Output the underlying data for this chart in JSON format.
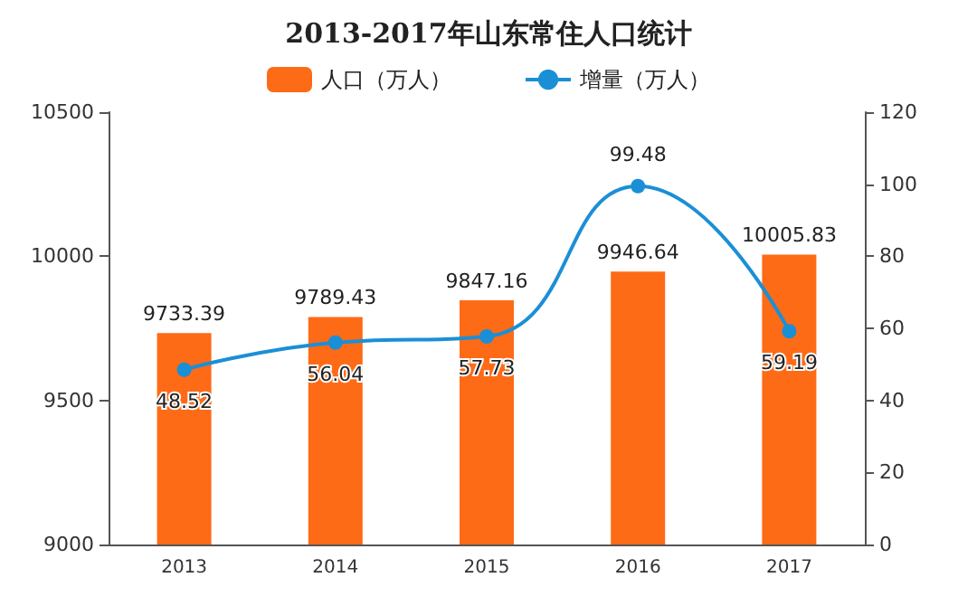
{
  "chart_data": {
    "type": "bar",
    "title": "2013-2017年山东常住人口统计",
    "categories": [
      "2013",
      "2014",
      "2015",
      "2016",
      "2017"
    ],
    "series": [
      {
        "name": "人口（万人）",
        "color": "#fe6b16",
        "values": [
          9733.39,
          9789.43,
          9847.16,
          9946.64,
          10005.83
        ]
      },
      {
        "name": "增量（万人）",
        "type": "line",
        "axis": "y2",
        "color": "#1b8fd6",
        "values": [
          48.52,
          56.04,
          57.73,
          99.48,
          59.19
        ]
      }
    ],
    "ylim": [
      9000,
      10500
    ],
    "yticks": [
      9000,
      9500,
      10000,
      10500
    ],
    "y2lim": [
      0,
      120
    ],
    "y2ticks": [
      0,
      20,
      40,
      60,
      80,
      100,
      120
    ],
    "data_labels": true,
    "legend": "top",
    "grid": false,
    "marker": "circle",
    "line_style": "solid"
  }
}
